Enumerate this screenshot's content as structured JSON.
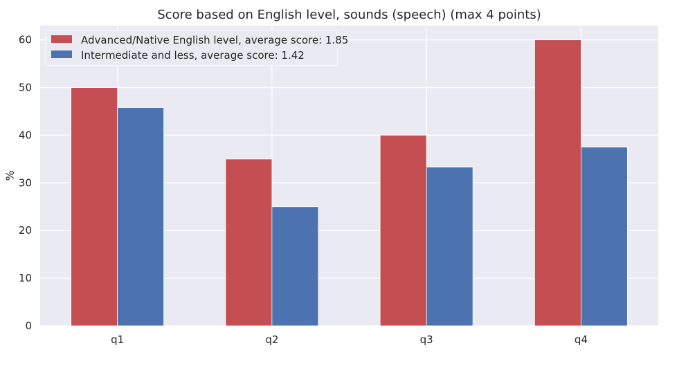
{
  "chart_data": {
    "type": "bar",
    "title": "Score based on English level, sounds (speech) (max 4 points)",
    "xlabel": "",
    "ylabel": "%",
    "categories": [
      "q1",
      "q2",
      "q3",
      "q4"
    ],
    "series": [
      {
        "name": "Advanced/Native English level, average score: 1.85",
        "values": [
          50,
          35,
          40,
          60
        ],
        "color": "#c44e52"
      },
      {
        "name": "Intermediate and less, average score: 1.42",
        "values": [
          45.8,
          25,
          33.3,
          37.5
        ],
        "color": "#4c72b0"
      }
    ],
    "ylim": [
      0,
      63
    ],
    "yticks": [
      0,
      10,
      20,
      30,
      40,
      50,
      60
    ],
    "grid": true,
    "legend_position": "top-left",
    "colors": {
      "plot_background": "#eaeaf2",
      "grid": "#ffffff"
    }
  }
}
